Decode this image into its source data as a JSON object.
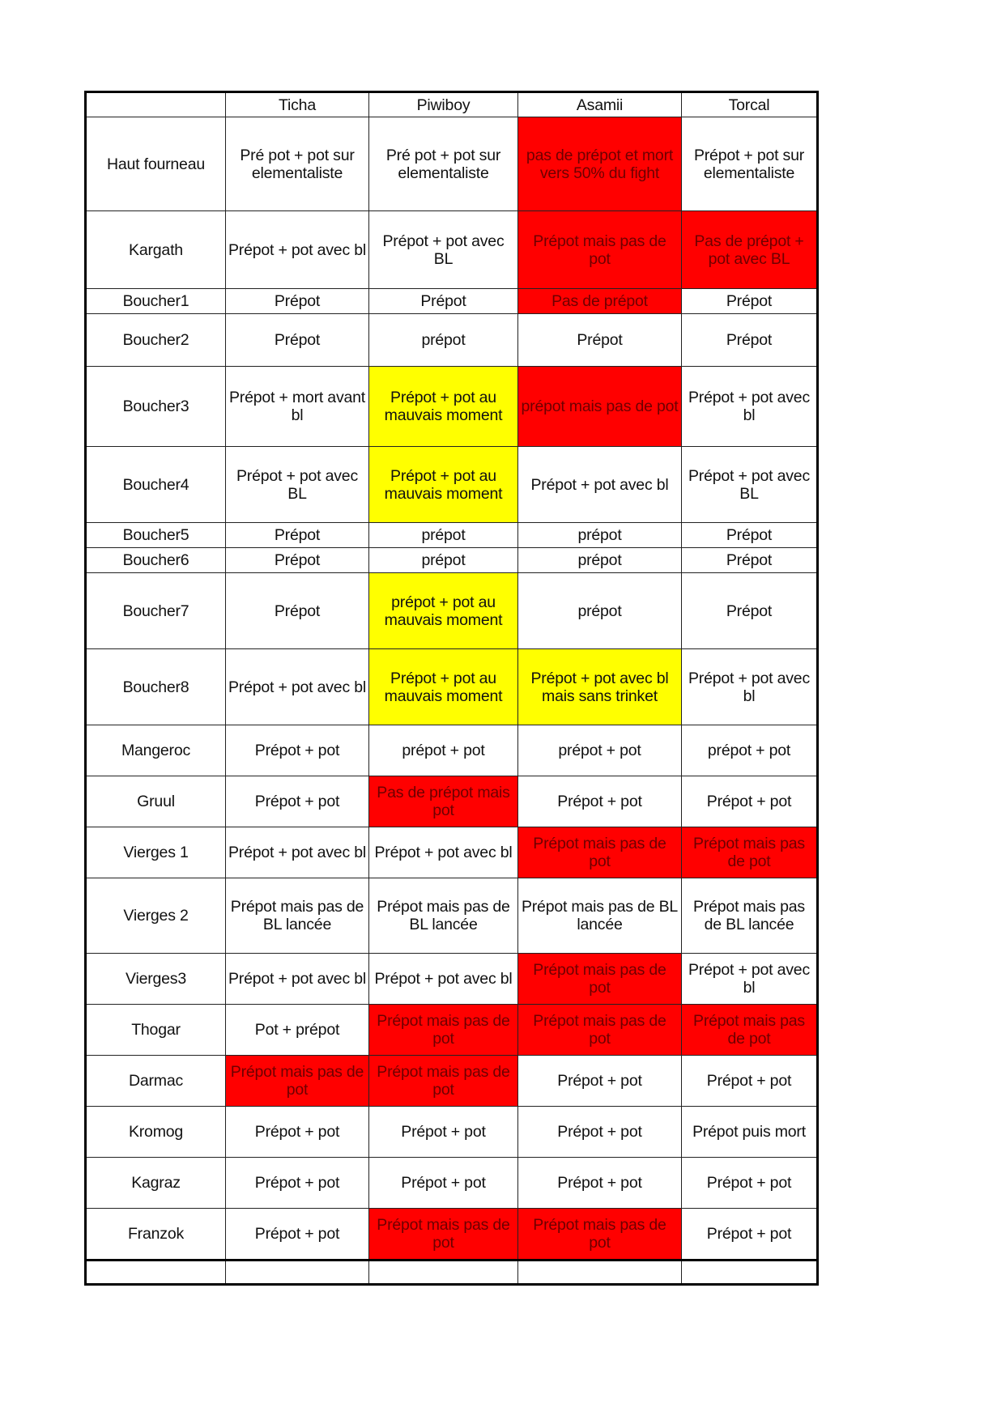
{
  "colors": {
    "red": "#ff0000",
    "yellow": "#ffff00"
  },
  "header": [
    "",
    "Ticha",
    "Piwiboy",
    "Asamii",
    "Torcal"
  ],
  "rows": [
    {
      "label": "Haut fourneau",
      "cells": [
        {
          "text": "Pré pot + pot sur elementaliste",
          "bg": ""
        },
        {
          "text": "Pré pot + pot sur elementaliste",
          "bg": ""
        },
        {
          "text": "pas de prépot et mort vers 50% du fight",
          "bg": "red"
        },
        {
          "text": "Prépot + pot sur elementaliste",
          "bg": ""
        }
      ]
    },
    {
      "label": "Kargath",
      "cells": [
        {
          "text": "Prépot + pot avec bl",
          "bg": ""
        },
        {
          "text": "Prépot + pot avec BL",
          "bg": ""
        },
        {
          "text": "Prépot mais pas de pot",
          "bg": "red"
        },
        {
          "text": "Pas de prépot + pot avec BL",
          "bg": "red"
        }
      ]
    },
    {
      "label": "Boucher1",
      "cells": [
        {
          "text": "Prépot",
          "bg": ""
        },
        {
          "text": "Prépot",
          "bg": ""
        },
        {
          "text": "Pas de prépot",
          "bg": "red"
        },
        {
          "text": "Prépot",
          "bg": ""
        }
      ]
    },
    {
      "label": "Boucher2",
      "cells": [
        {
          "text": "Prépot",
          "bg": ""
        },
        {
          "text": "prépot",
          "bg": ""
        },
        {
          "text": "Prépot",
          "bg": ""
        },
        {
          "text": "Prépot",
          "bg": ""
        }
      ]
    },
    {
      "label": "Boucher3",
      "cells": [
        {
          "text": "Prépot + mort avant bl",
          "bg": ""
        },
        {
          "text": "Prépot + pot au mauvais moment",
          "bg": "yellow"
        },
        {
          "text": "prépot mais pas de pot",
          "bg": "red"
        },
        {
          "text": "Prépot + pot avec bl",
          "bg": ""
        }
      ]
    },
    {
      "label": "Boucher4",
      "cells": [
        {
          "text": "Prépot + pot avec BL",
          "bg": ""
        },
        {
          "text": "Prépot + pot au mauvais moment",
          "bg": "yellow"
        },
        {
          "text": "Prépot + pot avec bl",
          "bg": ""
        },
        {
          "text": "Prépot + pot avec BL",
          "bg": ""
        }
      ]
    },
    {
      "label": "Boucher5",
      "cells": [
        {
          "text": "Prépot",
          "bg": ""
        },
        {
          "text": "prépot",
          "bg": ""
        },
        {
          "text": "prépot",
          "bg": ""
        },
        {
          "text": "Prépot",
          "bg": ""
        }
      ]
    },
    {
      "label": "Boucher6",
      "cells": [
        {
          "text": "Prépot",
          "bg": ""
        },
        {
          "text": "prépot",
          "bg": ""
        },
        {
          "text": "prépot",
          "bg": ""
        },
        {
          "text": "Prépot",
          "bg": ""
        }
      ]
    },
    {
      "label": "Boucher7",
      "cells": [
        {
          "text": "Prépot",
          "bg": ""
        },
        {
          "text": "prépot + pot au mauvais moment",
          "bg": "yellow"
        },
        {
          "text": "prépot",
          "bg": ""
        },
        {
          "text": "Prépot",
          "bg": ""
        }
      ]
    },
    {
      "label": "Boucher8",
      "cells": [
        {
          "text": "Prépot + pot avec bl",
          "bg": ""
        },
        {
          "text": "Prépot + pot au mauvais moment",
          "bg": "yellow"
        },
        {
          "text": "Prépot + pot avec bl mais sans trinket",
          "bg": "yellow"
        },
        {
          "text": "Prépot + pot avec bl",
          "bg": ""
        }
      ]
    },
    {
      "label": "Mangeroc",
      "cells": [
        {
          "text": "Prépot + pot",
          "bg": ""
        },
        {
          "text": "prépot + pot",
          "bg": ""
        },
        {
          "text": "prépot + pot",
          "bg": ""
        },
        {
          "text": "prépot + pot",
          "bg": ""
        }
      ]
    },
    {
      "label": "Gruul",
      "cells": [
        {
          "text": "Prépot + pot",
          "bg": ""
        },
        {
          "text": "Pas de prépot mais pot",
          "bg": "red"
        },
        {
          "text": "Prépot + pot",
          "bg": ""
        },
        {
          "text": "Prépot + pot",
          "bg": ""
        }
      ]
    },
    {
      "label": "Vierges 1",
      "cells": [
        {
          "text": "Prépot + pot avec bl",
          "bg": ""
        },
        {
          "text": "Prépot + pot avec bl",
          "bg": ""
        },
        {
          "text": "Prépot mais pas de pot",
          "bg": "red"
        },
        {
          "text": "Prépot mais pas de pot",
          "bg": "red"
        }
      ]
    },
    {
      "label": "Vierges 2",
      "cells": [
        {
          "text": "Prépot  mais pas de BL lancée",
          "bg": ""
        },
        {
          "text": "Prépot  mais pas de BL lancée",
          "bg": ""
        },
        {
          "text": "Prépot  mais pas de BL lancée",
          "bg": ""
        },
        {
          "text": "Prépot  mais pas de BL lancée",
          "bg": ""
        }
      ]
    },
    {
      "label": "Vierges3",
      "cells": [
        {
          "text": "Prépot + pot avec bl",
          "bg": ""
        },
        {
          "text": "Prépot + pot avec bl",
          "bg": ""
        },
        {
          "text": "Prépot mais pas de pot",
          "bg": "red"
        },
        {
          "text": "Prépot + pot avec bl",
          "bg": ""
        }
      ]
    },
    {
      "label": "Thogar",
      "cells": [
        {
          "text": "Pot + prépot",
          "bg": ""
        },
        {
          "text": "Prépot mais pas de pot",
          "bg": "red"
        },
        {
          "text": "Prépot mais pas de pot",
          "bg": "red"
        },
        {
          "text": "Prépot mais pas de pot",
          "bg": "red"
        }
      ]
    },
    {
      "label": "Darmac",
      "cells": [
        {
          "text": "Prépot mais pas de pot",
          "bg": "red"
        },
        {
          "text": "Prépot mais pas de pot",
          "bg": "red"
        },
        {
          "text": "Prépot + pot",
          "bg": ""
        },
        {
          "text": "Prépot + pot",
          "bg": ""
        }
      ]
    },
    {
      "label": "Kromog",
      "cells": [
        {
          "text": "Prépot + pot",
          "bg": ""
        },
        {
          "text": "Prépot + pot",
          "bg": ""
        },
        {
          "text": "Prépot + pot",
          "bg": ""
        },
        {
          "text": "Prépot puis mort",
          "bg": ""
        }
      ]
    },
    {
      "label": "Kagraz",
      "cells": [
        {
          "text": "Prépot + pot",
          "bg": ""
        },
        {
          "text": "Prépot + pot",
          "bg": ""
        },
        {
          "text": "Prépot + pot",
          "bg": ""
        },
        {
          "text": "Prépot + pot",
          "bg": ""
        }
      ]
    },
    {
      "label": "Franzok",
      "cells": [
        {
          "text": "Prépot + pot",
          "bg": ""
        },
        {
          "text": "Prépot mais pas de pot",
          "bg": "red"
        },
        {
          "text": "Prépot mais pas de pot",
          "bg": "red"
        },
        {
          "text": "Prépot + pot",
          "bg": ""
        }
      ]
    }
  ]
}
